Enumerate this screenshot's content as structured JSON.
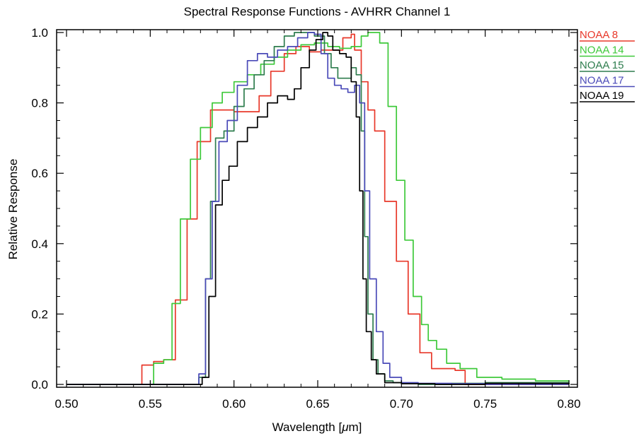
{
  "chart_data": {
    "type": "line",
    "title": "Spectral Response Functions - AVHRR Channel 1",
    "xlabel_pre": "Wavelength [",
    "xlabel_mu": "μ",
    "xlabel_post": "m]",
    "ylabel": "Relative Response",
    "xlim": [
      0.5,
      0.8
    ],
    "ylim": [
      0.0,
      1.0
    ],
    "xticks": [
      0.5,
      0.55,
      0.6,
      0.65,
      0.7,
      0.75,
      0.8
    ],
    "xtick_labels": [
      "0.50",
      "0.55",
      "0.60",
      "0.65",
      "0.70",
      "0.75",
      "0.80"
    ],
    "yticks": [
      0.0,
      0.2,
      0.4,
      0.6,
      0.8,
      1.0
    ],
    "ytick_labels": [
      "0.0",
      "0.2",
      "0.4",
      "0.6",
      "0.8",
      "1.0"
    ],
    "grid": false,
    "legend_position": "top-right",
    "series": [
      {
        "name": "NOAA 8",
        "color": "#e8382a",
        "x": [
          0.5,
          0.538,
          0.545,
          0.552,
          0.558,
          0.565,
          0.572,
          0.578,
          0.586,
          0.593,
          0.6,
          0.608,
          0.615,
          0.622,
          0.63,
          0.637,
          0.645,
          0.652,
          0.658,
          0.665,
          0.67,
          0.672,
          0.676,
          0.68,
          0.684,
          0.69,
          0.697,
          0.704,
          0.711,
          0.718,
          0.725,
          0.732,
          0.738,
          0.745,
          0.76,
          0.8
        ],
        "y": [
          0.0,
          0.0,
          0.055,
          0.065,
          0.07,
          0.24,
          0.47,
          0.69,
          0.78,
          0.78,
          0.775,
          0.775,
          0.82,
          0.89,
          0.94,
          0.96,
          0.945,
          0.95,
          0.95,
          0.985,
          0.995,
          0.95,
          0.86,
          0.78,
          0.72,
          0.52,
          0.35,
          0.2,
          0.09,
          0.045,
          0.045,
          0.04,
          0.0,
          0.0,
          0.0,
          0.0
        ]
      },
      {
        "name": "NOAA 14",
        "color": "#3ec93a",
        "x": [
          0.5,
          0.548,
          0.552,
          0.558,
          0.563,
          0.568,
          0.574,
          0.58,
          0.587,
          0.593,
          0.6,
          0.608,
          0.616,
          0.624,
          0.632,
          0.64,
          0.648,
          0.656,
          0.663,
          0.67,
          0.676,
          0.68,
          0.687,
          0.692,
          0.697,
          0.702,
          0.707,
          0.712,
          0.716,
          0.721,
          0.727,
          0.735,
          0.745,
          0.76,
          0.78,
          0.8
        ],
        "y": [
          0.0,
          0.0,
          0.06,
          0.07,
          0.23,
          0.47,
          0.64,
          0.73,
          0.8,
          0.83,
          0.86,
          0.88,
          0.91,
          0.93,
          0.95,
          0.965,
          0.97,
          0.96,
          0.955,
          0.96,
          0.99,
          1.0,
          0.97,
          0.79,
          0.58,
          0.41,
          0.25,
          0.17,
          0.125,
          0.1,
          0.06,
          0.045,
          0.02,
          0.015,
          0.01,
          0.008
        ]
      },
      {
        "name": "NOAA 15",
        "color": "#2e7d4e",
        "x": [
          0.5,
          0.575,
          0.579,
          0.583,
          0.586,
          0.589,
          0.594,
          0.6,
          0.606,
          0.612,
          0.618,
          0.624,
          0.63,
          0.636,
          0.642,
          0.648,
          0.654,
          0.658,
          0.662,
          0.666,
          0.67,
          0.673,
          0.676,
          0.678,
          0.68,
          0.683,
          0.686,
          0.69,
          0.695,
          0.7,
          0.71,
          0.73,
          0.75,
          0.8
        ],
        "y": [
          0.0,
          0.0,
          0.02,
          0.3,
          0.52,
          0.7,
          0.72,
          0.79,
          0.84,
          0.88,
          0.92,
          0.96,
          0.99,
          1.0,
          1.0,
          0.99,
          0.94,
          0.9,
          0.87,
          0.87,
          0.9,
          0.88,
          0.72,
          0.42,
          0.2,
          0.07,
          0.03,
          0.01,
          0.005,
          0.003,
          0.0,
          0.003,
          0.005,
          0.002
        ]
      },
      {
        "name": "NOAA 17",
        "color": "#4a4ab8",
        "x": [
          0.5,
          0.575,
          0.579,
          0.583,
          0.587,
          0.591,
          0.596,
          0.602,
          0.608,
          0.614,
          0.62,
          0.626,
          0.632,
          0.638,
          0.644,
          0.648,
          0.652,
          0.656,
          0.66,
          0.664,
          0.668,
          0.672,
          0.675,
          0.678,
          0.681,
          0.685,
          0.689,
          0.693,
          0.7,
          0.71,
          0.73,
          0.75,
          0.8
        ],
        "y": [
          0.0,
          0.0,
          0.03,
          0.3,
          0.52,
          0.69,
          0.75,
          0.85,
          0.92,
          0.94,
          0.93,
          0.95,
          0.96,
          0.985,
          1.0,
          0.995,
          0.94,
          0.87,
          0.85,
          0.84,
          0.83,
          0.85,
          0.8,
          0.55,
          0.3,
          0.15,
          0.06,
          0.02,
          0.005,
          0.003,
          0.002,
          0.0,
          0.0
        ]
      },
      {
        "name": "NOAA 19",
        "color": "#000000",
        "x": [
          0.5,
          0.577,
          0.581,
          0.585,
          0.589,
          0.593,
          0.597,
          0.602,
          0.608,
          0.614,
          0.62,
          0.626,
          0.632,
          0.636,
          0.64,
          0.645,
          0.649,
          0.653,
          0.656,
          0.659,
          0.663,
          0.667,
          0.67,
          0.673,
          0.675,
          0.677,
          0.679,
          0.682,
          0.685,
          0.69,
          0.7,
          0.72,
          0.75,
          0.8
        ],
        "y": [
          0.0,
          0.0,
          0.02,
          0.25,
          0.51,
          0.58,
          0.62,
          0.69,
          0.73,
          0.76,
          0.8,
          0.82,
          0.81,
          0.84,
          0.9,
          0.95,
          0.98,
          1.0,
          0.99,
          0.95,
          0.94,
          0.93,
          0.86,
          0.76,
          0.55,
          0.3,
          0.15,
          0.07,
          0.03,
          0.005,
          0.002,
          0.0,
          0.003,
          0.0
        ]
      }
    ]
  }
}
